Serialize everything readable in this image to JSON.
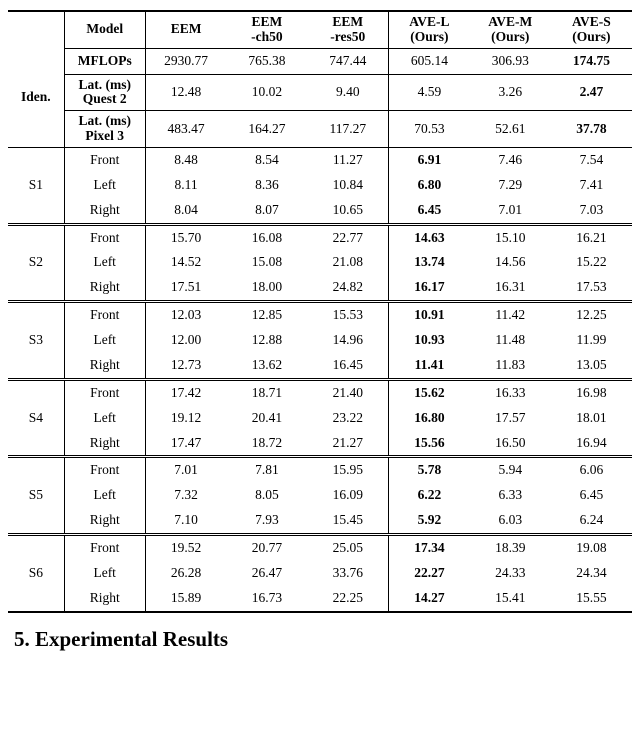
{
  "table": {
    "col_widths": [
      "9%",
      "13%",
      "13%",
      "13%",
      "13%",
      "13%",
      "13%",
      "13%"
    ],
    "header": {
      "blank": "",
      "model": "Model",
      "eem": "EEM",
      "eem_ch50_l1": "EEM",
      "eem_ch50_l2": "-ch50",
      "eem_res50_l1": "EEM",
      "eem_res50_l2": "-res50",
      "avel_l1": "AVE-L",
      "avel_l2": "(Ours)",
      "avem_l1": "AVE-M",
      "avem_l2": "(Ours)",
      "aves_l1": "AVE-S",
      "aves_l2": "(Ours)"
    },
    "iden": {
      "label": "Iden.",
      "mflops": {
        "label": "MFLOPs",
        "v": [
          "2930.77",
          "765.38",
          "747.44",
          "605.14",
          "306.93",
          "174.75"
        ]
      },
      "lat_q2": {
        "label_l1": "Lat. (ms)",
        "label_l2": "Quest 2",
        "v": [
          "12.48",
          "10.02",
          "9.40",
          "4.59",
          "3.26",
          "2.47"
        ]
      },
      "lat_p3": {
        "label_l1": "Lat. (ms)",
        "label_l2": "Pixel 3",
        "v": [
          "483.47",
          "164.27",
          "117.27",
          "70.53",
          "52.61",
          "37.78"
        ]
      }
    },
    "sections": [
      {
        "id": "S1",
        "rows": [
          {
            "view": "Front",
            "v": [
              "8.48",
              "8.54",
              "11.27",
              "6.91",
              "7.46",
              "7.54"
            ]
          },
          {
            "view": "Left",
            "v": [
              "8.11",
              "8.36",
              "10.84",
              "6.80",
              "7.29",
              "7.41"
            ]
          },
          {
            "view": "Right",
            "v": [
              "8.04",
              "8.07",
              "10.65",
              "6.45",
              "7.01",
              "7.03"
            ]
          }
        ]
      },
      {
        "id": "S2",
        "rows": [
          {
            "view": "Front",
            "v": [
              "15.70",
              "16.08",
              "22.77",
              "14.63",
              "15.10",
              "16.21"
            ]
          },
          {
            "view": "Left",
            "v": [
              "14.52",
              "15.08",
              "21.08",
              "13.74",
              "14.56",
              "15.22"
            ]
          },
          {
            "view": "Right",
            "v": [
              "17.51",
              "18.00",
              "24.82",
              "16.17",
              "16.31",
              "17.53"
            ]
          }
        ]
      },
      {
        "id": "S3",
        "rows": [
          {
            "view": "Front",
            "v": [
              "12.03",
              "12.85",
              "15.53",
              "10.91",
              "11.42",
              "12.25"
            ]
          },
          {
            "view": "Left",
            "v": [
              "12.00",
              "12.88",
              "14.96",
              "10.93",
              "11.48",
              "11.99"
            ]
          },
          {
            "view": "Right",
            "v": [
              "12.73",
              "13.62",
              "16.45",
              "11.41",
              "11.83",
              "13.05"
            ]
          }
        ]
      },
      {
        "id": "S4",
        "rows": [
          {
            "view": "Front",
            "v": [
              "17.42",
              "18.71",
              "21.40",
              "15.62",
              "16.33",
              "16.98"
            ]
          },
          {
            "view": "Left",
            "v": [
              "19.12",
              "20.41",
              "23.22",
              "16.80",
              "17.57",
              "18.01"
            ]
          },
          {
            "view": "Right",
            "v": [
              "17.47",
              "18.72",
              "21.27",
              "15.56",
              "16.50",
              "16.94"
            ]
          }
        ]
      },
      {
        "id": "S5",
        "rows": [
          {
            "view": "Front",
            "v": [
              "7.01",
              "7.81",
              "15.95",
              "5.78",
              "5.94",
              "6.06"
            ]
          },
          {
            "view": "Left",
            "v": [
              "7.32",
              "8.05",
              "16.09",
              "6.22",
              "6.33",
              "6.45"
            ]
          },
          {
            "view": "Right",
            "v": [
              "7.10",
              "7.93",
              "15.45",
              "5.92",
              "6.03",
              "6.24"
            ]
          }
        ]
      },
      {
        "id": "S6",
        "rows": [
          {
            "view": "Front",
            "v": [
              "19.52",
              "20.77",
              "25.05",
              "17.34",
              "18.39",
              "19.08"
            ]
          },
          {
            "view": "Left",
            "v": [
              "26.28",
              "26.47",
              "33.76",
              "22.27",
              "24.33",
              "24.34"
            ]
          },
          {
            "view": "Right",
            "v": [
              "15.89",
              "16.73",
              "22.25",
              "14.27",
              "15.41",
              "15.55"
            ]
          }
        ]
      }
    ]
  },
  "section_title": "5. Experimental Results"
}
